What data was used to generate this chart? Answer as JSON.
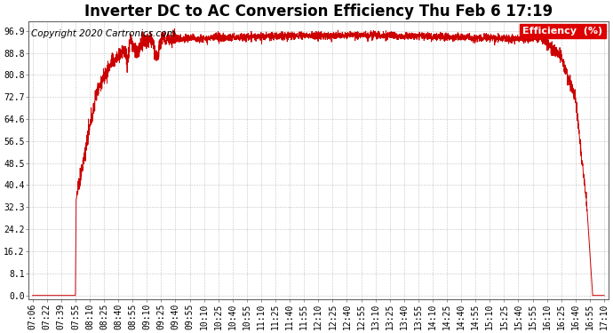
{
  "title": "Inverter DC to AC Conversion Efficiency Thu Feb 6 17:19",
  "copyright": "Copyright 2020 Cartronics.com",
  "legend_label": "Efficiency  (%)",
  "legend_bg": "#dd0000",
  "legend_text_color": "#ffffff",
  "line_color": "#cc0000",
  "bg_color": "#ffffff",
  "grid_color": "#aaaaaa",
  "yticks": [
    0.0,
    8.1,
    16.2,
    24.2,
    32.3,
    40.4,
    48.5,
    56.5,
    64.6,
    72.7,
    80.8,
    88.8,
    96.9
  ],
  "ylim": [
    -1.5,
    100.5
  ],
  "xtick_labels": [
    "07:06",
    "07:22",
    "07:39",
    "07:55",
    "08:10",
    "08:25",
    "08:40",
    "08:55",
    "09:10",
    "09:25",
    "09:40",
    "09:55",
    "10:10",
    "10:25",
    "10:40",
    "10:55",
    "11:10",
    "11:25",
    "11:40",
    "11:55",
    "12:10",
    "12:25",
    "12:40",
    "12:55",
    "13:10",
    "13:25",
    "13:40",
    "13:55",
    "14:10",
    "14:25",
    "14:40",
    "14:55",
    "15:10",
    "15:25",
    "15:40",
    "15:55",
    "16:10",
    "16:25",
    "16:40",
    "16:55",
    "17:10"
  ],
  "title_fontsize": 12,
  "copyright_fontsize": 7.5,
  "axis_fontsize": 7
}
